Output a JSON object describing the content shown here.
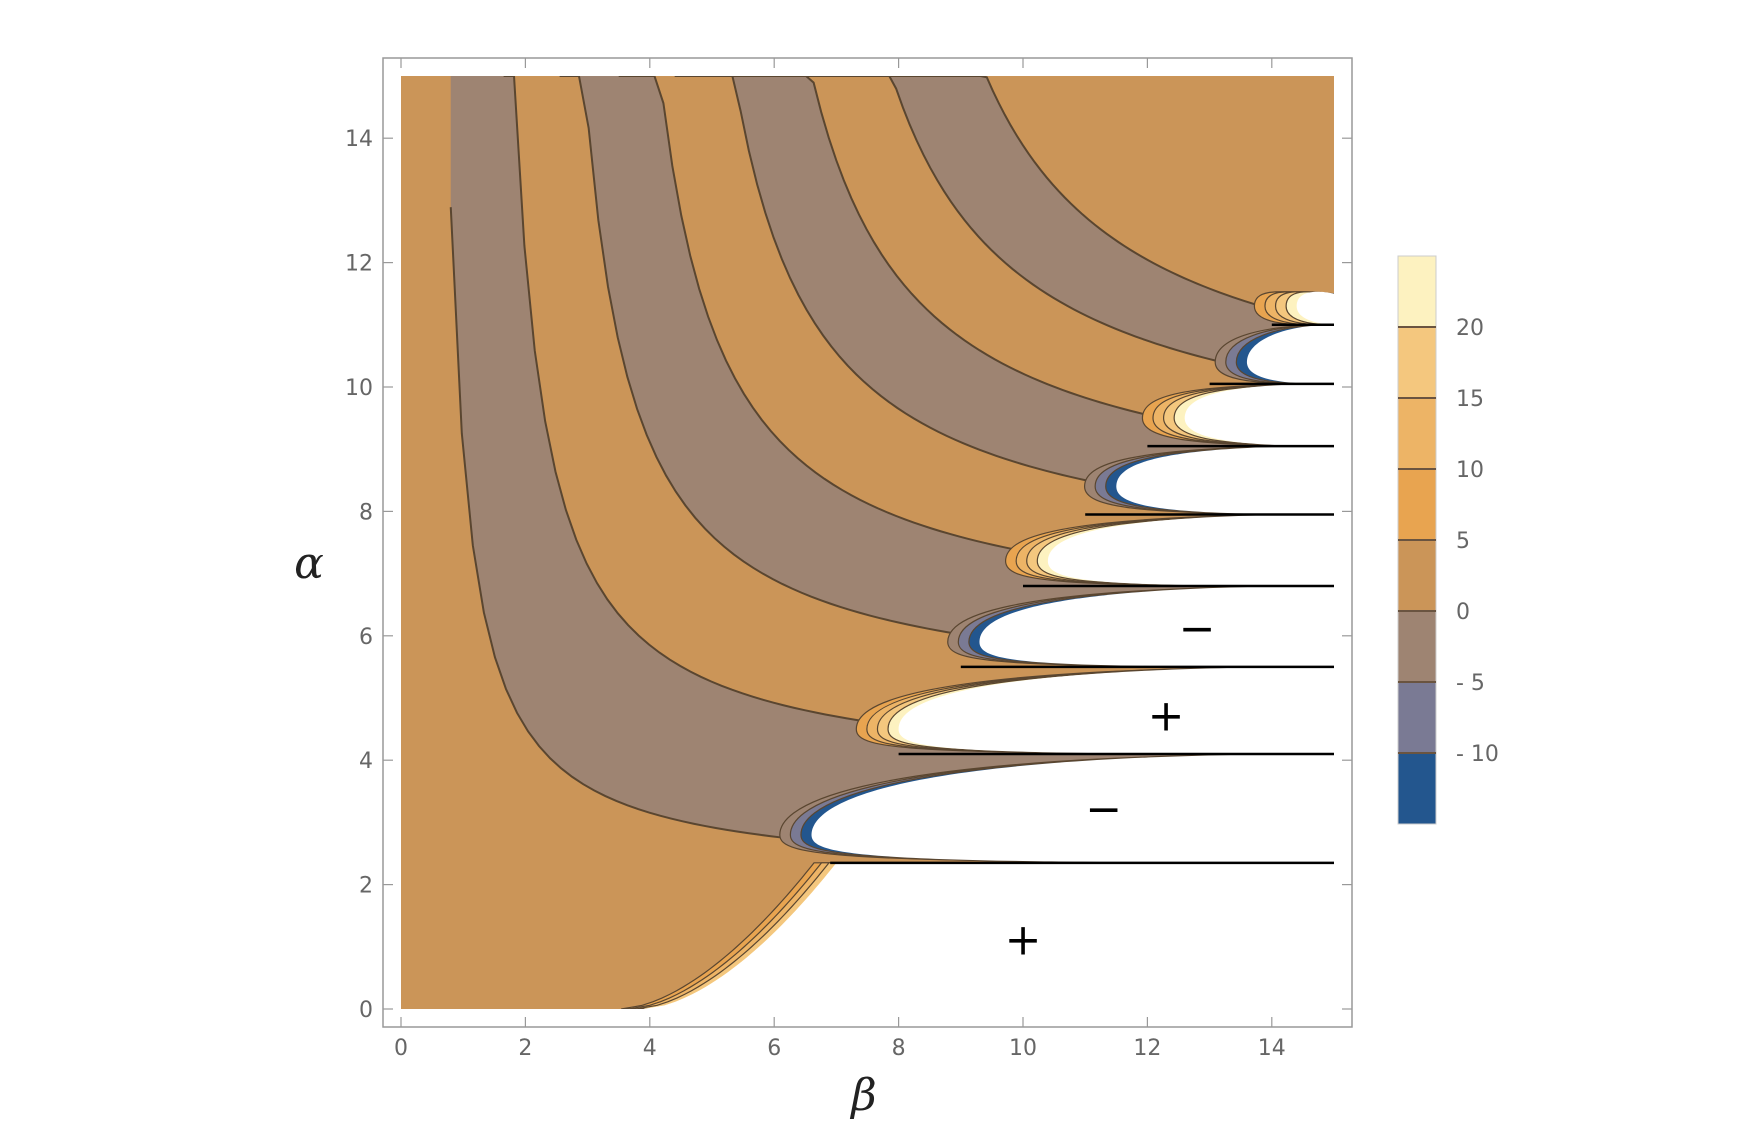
{
  "chart_data": {
    "type": "contour",
    "title": "",
    "xlabel": "β",
    "ylabel": "α",
    "xlim": [
      0,
      15
    ],
    "ylim": [
      0,
      15
    ],
    "x_ticks": [
      0,
      2,
      4,
      6,
      8,
      10,
      12,
      14
    ],
    "y_ticks": [
      0,
      2,
      4,
      6,
      8,
      10,
      12,
      14
    ],
    "legend": {
      "placement": "right",
      "levels": [
        "20",
        "15",
        "10",
        "5",
        "0",
        "- 5",
        "- 10"
      ],
      "bands": [
        {
          "range": "> 20",
          "color": "#FDF2C0"
        },
        {
          "range": "15 to 20",
          "color": "#F4C77E"
        },
        {
          "range": "10 to 15",
          "color": "#EDB466"
        },
        {
          "range": "5 to 10",
          "color": "#E8A450"
        },
        {
          "range": "0 to 5",
          "color": "#CB9558"
        },
        {
          "range": "-5 to 0",
          "color": "#9E8472"
        },
        {
          "range": "-10 to -5",
          "color": "#7A7A94"
        },
        {
          "range": "< -10",
          "color": "#23568E"
        }
      ]
    },
    "undefined_region_color": "#FFFFFF",
    "asymptote_alphas": [
      2.35,
      4.1,
      5.5,
      6.8,
      7.95,
      9.05,
      10.05,
      11.0
    ],
    "lobe_tips": [
      {
        "alpha": 2.8,
        "beta": 6.6,
        "sign": "negative"
      },
      {
        "alpha": 4.5,
        "beta": 8.0,
        "sign": "positive"
      },
      {
        "alpha": 5.9,
        "beta": 9.3,
        "sign": "negative"
      },
      {
        "alpha": 7.2,
        "beta": 10.4,
        "sign": "positive"
      },
      {
        "alpha": 8.4,
        "beta": 11.5,
        "sign": "negative"
      },
      {
        "alpha": 9.5,
        "beta": 12.6,
        "sign": "positive"
      },
      {
        "alpha": 10.4,
        "beta": 13.6,
        "sign": "negative"
      },
      {
        "alpha": 11.3,
        "beta": 14.4,
        "sign": "positive"
      }
    ],
    "region_labels": [
      {
        "text": "+",
        "beta": 10.0,
        "alpha": 1.1
      },
      {
        "text": "−",
        "beta": 11.3,
        "alpha": 3.2
      },
      {
        "text": "+",
        "beta": 12.3,
        "alpha": 4.7
      },
      {
        "text": "−",
        "beta": 12.8,
        "alpha": 6.1
      }
    ]
  }
}
